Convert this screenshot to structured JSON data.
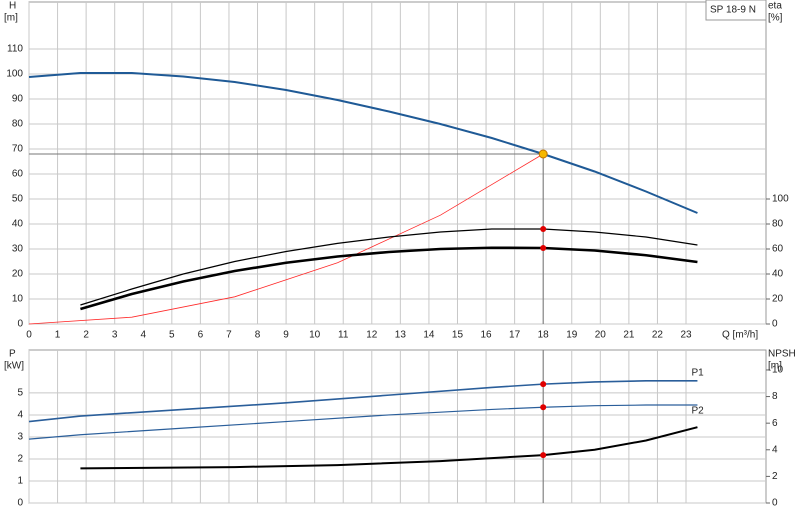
{
  "chart_data": [
    {
      "type": "line",
      "ylabel": "H",
      "yunit": "[m]",
      "y2label": "eta",
      "y2unit": "[%]",
      "xlabel": "Q [m³/h]",
      "box_label": "SP 18-9 N",
      "xlim": [
        0,
        25.8
      ],
      "xticks": [
        0,
        1,
        2,
        3,
        4,
        5,
        6,
        7,
        8,
        9,
        10,
        11,
        12,
        13,
        14,
        15,
        16,
        17,
        18,
        19,
        20,
        21,
        22,
        23
      ],
      "ylim": [
        0,
        128.8
      ],
      "yticks": [
        0,
        10,
        20,
        30,
        40,
        50,
        60,
        70,
        80,
        90,
        100,
        110
      ],
      "y2lim": [
        0,
        257.6
      ],
      "y2ticks": [
        0,
        20,
        40,
        60,
        80,
        100
      ],
      "grid": true,
      "operating_point": {
        "x": 18,
        "y": 68,
        "color": "#f5b800"
      },
      "series": [
        {
          "color": "#1f5a96",
          "width": 2,
          "x": [
            0,
            1.8,
            3.6,
            5.4,
            7.2,
            9,
            10.8,
            12.6,
            14.4,
            16.2,
            18,
            19.8,
            21.6,
            23.4
          ],
          "values": [
            98.8,
            100.4,
            100.4,
            99,
            96.8,
            93.6,
            89.6,
            85,
            80,
            74.4,
            68,
            61,
            53,
            44.4
          ]
        },
        {
          "color": "#ff2a2a",
          "width": 0.8,
          "x": [
            0,
            3.6,
            7.2,
            10.8,
            14.4,
            18
          ],
          "values": [
            0,
            2.72,
            10.88,
            24.48,
            43.52,
            68
          ]
        },
        {
          "color": "#000000",
          "width": 1.2,
          "axis": "y2",
          "duty_marker": true,
          "x": [
            1.8,
            3.6,
            5.4,
            7.2,
            9,
            10.8,
            12.6,
            14.4,
            16.2,
            18,
            19.8,
            21.6,
            23.4
          ],
          "values": [
            15.2,
            28,
            40,
            50,
            58,
            64.5,
            69.6,
            73.6,
            76,
            76,
            73.6,
            69.6,
            63.2
          ]
        },
        {
          "color": "#000000",
          "width": 2.6,
          "axis": "y2",
          "duty_marker": true,
          "x": [
            1.8,
            3.6,
            5.4,
            7.2,
            9,
            10.8,
            12.6,
            14.4,
            16.2,
            18,
            19.8,
            21.6,
            23.4
          ],
          "values": [
            12,
            24,
            34,
            42.4,
            49,
            54,
            57.6,
            60,
            61,
            60.8,
            58.8,
            55,
            49.6
          ]
        }
      ]
    },
    {
      "type": "line",
      "ylabel": "P",
      "yunit": "[kW]",
      "y2label": "NPSH",
      "y2unit": "[m]",
      "xlim": [
        0,
        25.8
      ],
      "ylim": [
        0,
        6.95
      ],
      "yticks": [
        0,
        1,
        2,
        3,
        4,
        5
      ],
      "y2lim": [
        0,
        11.5
      ],
      "y2ticks": [
        0,
        2,
        4,
        6,
        8,
        10
      ],
      "grid": true,
      "operating_point": {
        "x": 18
      },
      "series": [
        {
          "name": "P1",
          "color": "#2a5e9a",
          "width": 1.6,
          "duty_marker": true,
          "x": [
            0,
            1.8,
            5.4,
            9,
            12.6,
            16.2,
            18,
            19.8,
            21.6,
            23.4
          ],
          "values": [
            3.7,
            3.95,
            4.25,
            4.55,
            4.9,
            5.25,
            5.4,
            5.5,
            5.55,
            5.55
          ]
        },
        {
          "name": "P2",
          "color": "#2a5e9a",
          "width": 1.2,
          "duty_marker": true,
          "x": [
            0,
            1.8,
            5.4,
            9,
            12.6,
            16.2,
            18,
            19.8,
            21.6,
            23.4
          ],
          "values": [
            2.9,
            3.1,
            3.4,
            3.7,
            4,
            4.25,
            4.35,
            4.42,
            4.45,
            4.45
          ]
        },
        {
          "color": "#000000",
          "width": 2,
          "axis": "y2",
          "duty_marker": true,
          "x": [
            1.8,
            7.2,
            10.8,
            14.4,
            18,
            19.8,
            21.6,
            23.4
          ],
          "values": [
            2.6,
            2.7,
            2.85,
            3.15,
            3.6,
            4,
            4.7,
            5.7
          ]
        }
      ]
    }
  ]
}
